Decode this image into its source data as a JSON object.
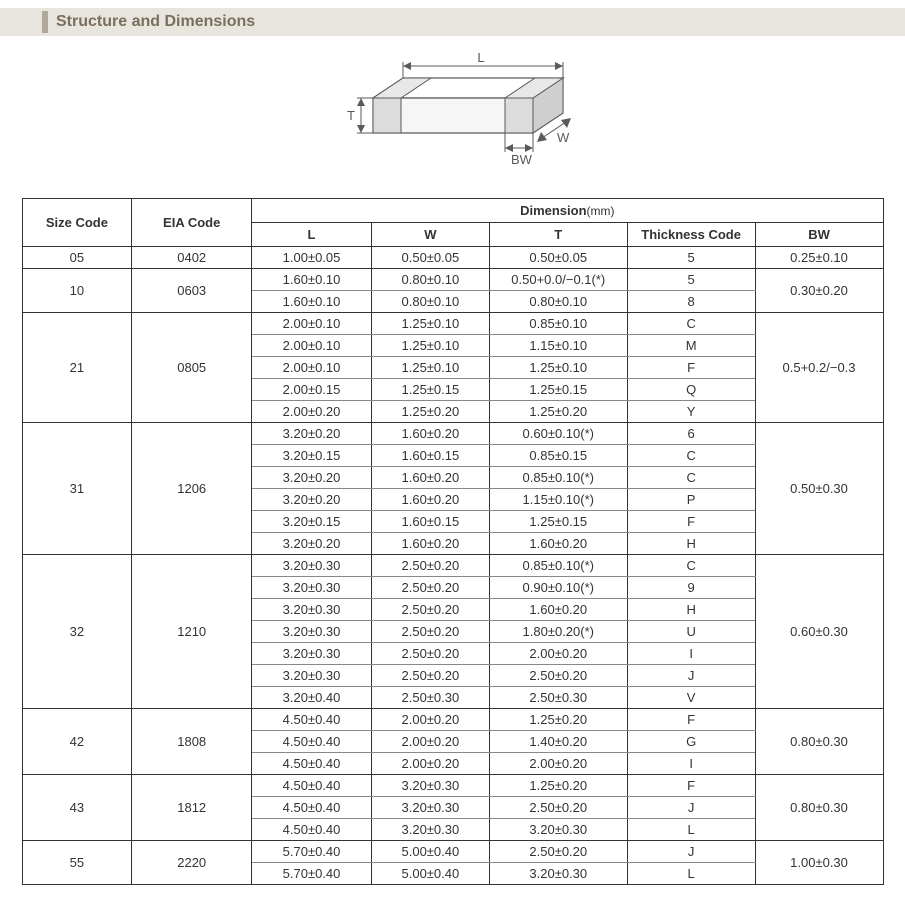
{
  "section": {
    "title": "Structure and Dimensions"
  },
  "diagram": {
    "labels": {
      "L": "L",
      "W": "W",
      "T": "T",
      "BW": "BW"
    },
    "stroke": "#5a5a5a",
    "fill_top": "#ffffff",
    "fill_front": "#f2f2f2",
    "fill_side": "#e0e0e0",
    "terminal_fill": "#d0d0d0"
  },
  "table": {
    "headers": {
      "size_code": "Size Code",
      "eia_code": "EIA Code",
      "dimension": "Dimension",
      "dimension_unit": "(mm)",
      "L": "L",
      "W": "W",
      "T": "T",
      "thickness_code": "Thickness  Code",
      "BW": "BW"
    },
    "col_widths": {
      "size": 110,
      "eia": 120,
      "L": 120,
      "W": 118,
      "T": 138,
      "tc": 128,
      "BW": 128
    },
    "groups": [
      {
        "size": "05",
        "eia": "0402",
        "bw": "0.25±0.10",
        "rows": [
          {
            "L": "1.00±0.05",
            "W": "0.50±0.05",
            "T": "0.50±0.05",
            "tc": "5"
          }
        ]
      },
      {
        "size": "10",
        "eia": "0603",
        "bw": "0.30±0.20",
        "rows": [
          {
            "L": "1.60±0.10",
            "W": "0.80±0.10",
            "T": "0.50+0.0/−0.1(*)",
            "tc": "5"
          },
          {
            "L": "1.60±0.10",
            "W": "0.80±0.10",
            "T": "0.80±0.10",
            "tc": "8"
          }
        ]
      },
      {
        "size": "21",
        "eia": "0805",
        "bw": "0.5+0.2/−0.3",
        "rows": [
          {
            "L": "2.00±0.10",
            "W": "1.25±0.10",
            "T": "0.85±0.10",
            "tc": "C"
          },
          {
            "L": "2.00±0.10",
            "W": "1.25±0.10",
            "T": "1.15±0.10",
            "tc": "M"
          },
          {
            "L": "2.00±0.10",
            "W": "1.25±0.10",
            "T": "1.25±0.10",
            "tc": "F"
          },
          {
            "L": "2.00±0.15",
            "W": "1.25±0.15",
            "T": "1.25±0.15",
            "tc": "Q"
          },
          {
            "L": "2.00±0.20",
            "W": "1.25±0.20",
            "T": "1.25±0.20",
            "tc": "Y"
          }
        ]
      },
      {
        "size": "31",
        "eia": "1206",
        "bw": "0.50±0.30",
        "rows": [
          {
            "L": "3.20±0.20",
            "W": "1.60±0.20",
            "T": "0.60±0.10(*)",
            "tc": "6"
          },
          {
            "L": "3.20±0.15",
            "W": "1.60±0.15",
            "T": "0.85±0.15",
            "tc": "C"
          },
          {
            "L": "3.20±0.20",
            "W": "1.60±0.20",
            "T": "0.85±0.10(*)",
            "tc": "C"
          },
          {
            "L": "3.20±0.20",
            "W": "1.60±0.20",
            "T": "1.15±0.10(*)",
            "tc": "P"
          },
          {
            "L": "3.20±0.15",
            "W": "1.60±0.15",
            "T": "1.25±0.15",
            "tc": "F"
          },
          {
            "L": "3.20±0.20",
            "W": "1.60±0.20",
            "T": "1.60±0.20",
            "tc": "H"
          }
        ]
      },
      {
        "size": "32",
        "eia": "1210",
        "bw": "0.60±0.30",
        "rows": [
          {
            "L": "3.20±0.30",
            "W": "2.50±0.20",
            "T": "0.85±0.10(*)",
            "tc": "C"
          },
          {
            "L": "3.20±0.30",
            "W": "2.50±0.20",
            "T": "0.90±0.10(*)",
            "tc": "9"
          },
          {
            "L": "3.20±0.30",
            "W": "2.50±0.20",
            "T": "1.60±0.20",
            "tc": "H"
          },
          {
            "L": "3.20±0.30",
            "W": "2.50±0.20",
            "T": "1.80±0.20(*)",
            "tc": "U"
          },
          {
            "L": "3.20±0.30",
            "W": "2.50±0.20",
            "T": "2.00±0.20",
            "tc": "I"
          },
          {
            "L": "3.20±0.30",
            "W": "2.50±0.20",
            "T": "2.50±0.20",
            "tc": "J"
          },
          {
            "L": "3.20±0.40",
            "W": "2.50±0.30",
            "T": "2.50±0.30",
            "tc": "V"
          }
        ]
      },
      {
        "size": "42",
        "eia": "1808",
        "bw": "0.80±0.30",
        "rows": [
          {
            "L": "4.50±0.40",
            "W": "2.00±0.20",
            "T": "1.25±0.20",
            "tc": "F"
          },
          {
            "L": "4.50±0.40",
            "W": "2.00±0.20",
            "T": "1.40±0.20",
            "tc": "G"
          },
          {
            "L": "4.50±0.40",
            "W": "2.00±0.20",
            "T": "2.00±0.20",
            "tc": "I"
          }
        ]
      },
      {
        "size": "43",
        "eia": "1812",
        "bw": "0.80±0.30",
        "rows": [
          {
            "L": "4.50±0.40",
            "W": "3.20±0.30",
            "T": "1.25±0.20",
            "tc": "F"
          },
          {
            "L": "4.50±0.40",
            "W": "3.20±0.30",
            "T": "2.50±0.20",
            "tc": "J"
          },
          {
            "L": "4.50±0.40",
            "W": "3.20±0.30",
            "T": "3.20±0.30",
            "tc": "L"
          }
        ]
      },
      {
        "size": "55",
        "eia": "2220",
        "bw": "1.00±0.30",
        "rows": [
          {
            "L": "5.70±0.40",
            "W": "5.00±0.40",
            "T": "2.50±0.20",
            "tc": "J"
          },
          {
            "L": "5.70±0.40",
            "W": "5.00±0.40",
            "T": "3.20±0.30",
            "tc": "L"
          }
        ]
      }
    ]
  }
}
